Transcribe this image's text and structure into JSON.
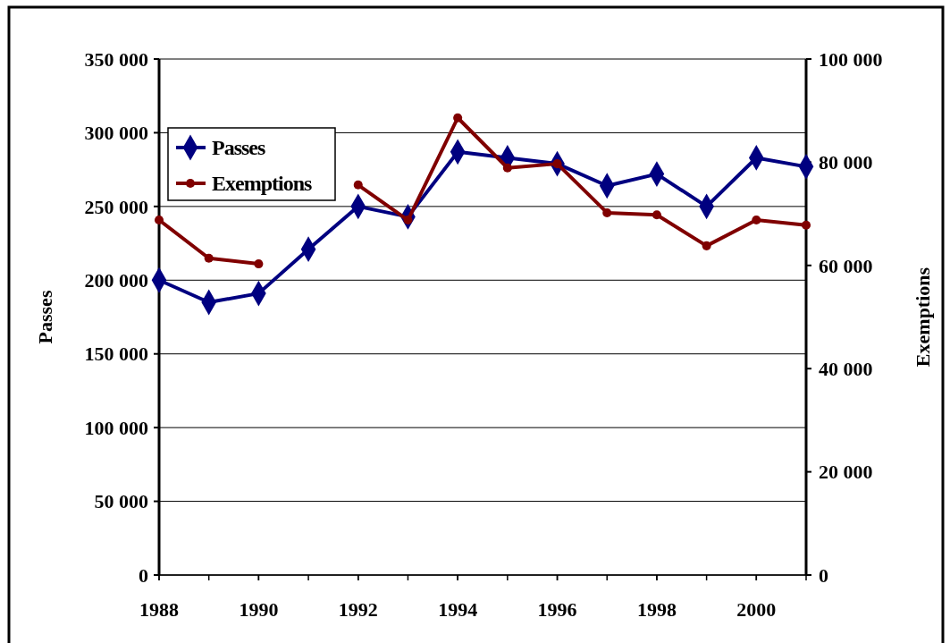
{
  "chart_data": {
    "type": "line",
    "xlabel": null,
    "ylabel": "Passes",
    "y2label": "Exemptions",
    "x": [
      1988,
      1989,
      1990,
      1991,
      1992,
      1993,
      1994,
      1995,
      1996,
      1997,
      1998,
      1999,
      2000,
      2001
    ],
    "xlim": [
      1988,
      2001
    ],
    "xticks": [
      1988,
      1990,
      1992,
      1994,
      1996,
      1998,
      2000
    ],
    "ylim": [
      0,
      350000
    ],
    "yticks": [
      {
        "value": 0,
        "label": "0"
      },
      {
        "value": 50000,
        "label": "50 000"
      },
      {
        "value": 100000,
        "label": "100 000"
      },
      {
        "value": 150000,
        "label": "150 000"
      },
      {
        "value": 200000,
        "label": "200 000"
      },
      {
        "value": 250000,
        "label": "250 000"
      },
      {
        "value": 300000,
        "label": "300 000"
      },
      {
        "value": 350000,
        "label": "350 000"
      }
    ],
    "y2lim": [
      0,
      100000
    ],
    "y2ticks": [
      {
        "value": 0,
        "label": "0"
      },
      {
        "value": 20000,
        "label": "20 000"
      },
      {
        "value": 40000,
        "label": "40 000"
      },
      {
        "value": 60000,
        "label": "60 000"
      },
      {
        "value": 80000,
        "label": "80 000"
      },
      {
        "value": 100000,
        "label": "100 000"
      }
    ],
    "grid": "y",
    "legend": "top left",
    "series": [
      {
        "name": "Passes",
        "color": "#000080",
        "marker": "diamond",
        "values": [
          200000,
          185000,
          191000,
          221000,
          250000,
          243000,
          287000,
          283000,
          279000,
          264000,
          272000,
          250000,
          283000,
          277000
        ]
      },
      {
        "name": "Exemptions",
        "color": "#800000",
        "marker": "circle",
        "axis": "y2",
        "values": [
          68800,
          61400,
          60300,
          null,
          75600,
          68800,
          88600,
          78900,
          79700,
          70200,
          69800,
          63800,
          68800,
          67800
        ]
      }
    ]
  }
}
